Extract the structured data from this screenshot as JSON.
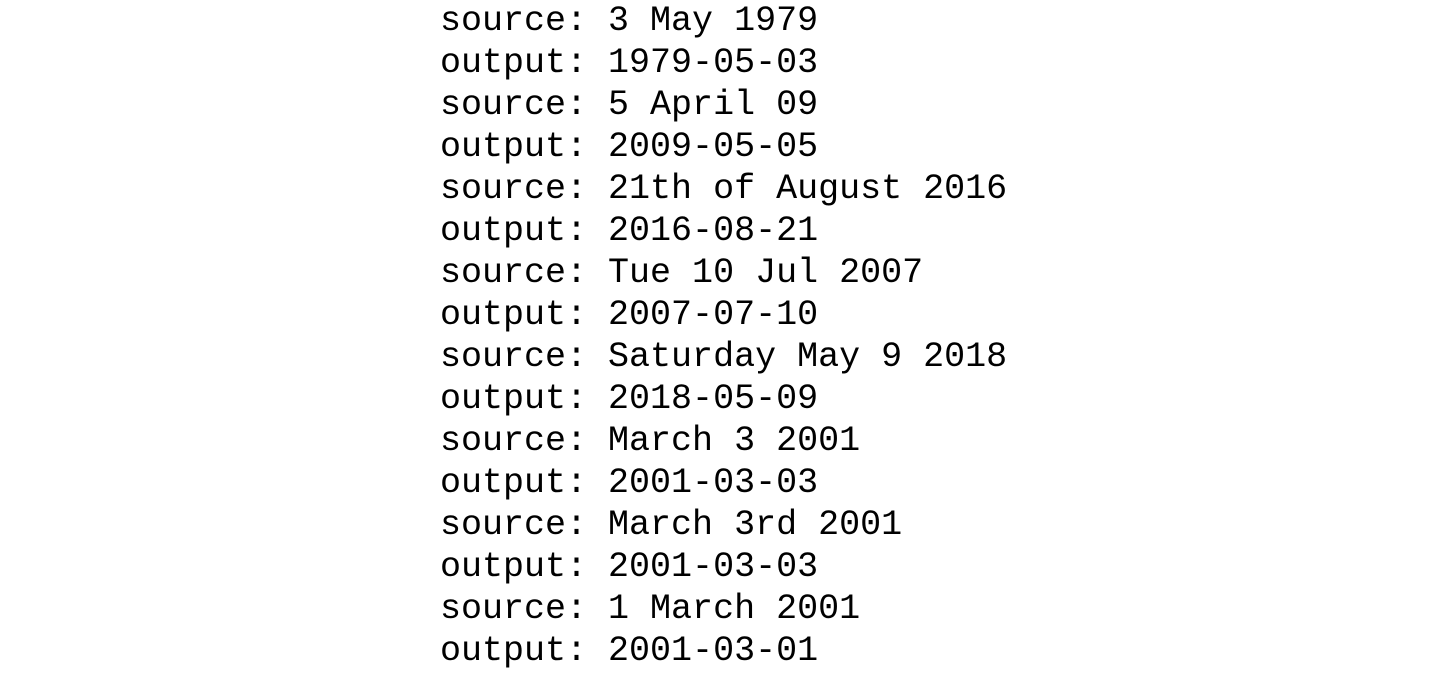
{
  "lines": [
    {
      "label": "source:",
      "value": "3 May 1979"
    },
    {
      "label": "output:",
      "value": "1979-05-03"
    },
    {
      "label": "source:",
      "value": "5 April 09"
    },
    {
      "label": "output:",
      "value": "2009-05-05"
    },
    {
      "label": "source:",
      "value": "21th of August 2016"
    },
    {
      "label": "output:",
      "value": "2016-08-21"
    },
    {
      "label": "source:",
      "value": "Tue 10 Jul 2007"
    },
    {
      "label": "output:",
      "value": "2007-07-10"
    },
    {
      "label": "source:",
      "value": "Saturday May 9 2018"
    },
    {
      "label": "output:",
      "value": "2018-05-09"
    },
    {
      "label": "source:",
      "value": "March 3 2001"
    },
    {
      "label": "output:",
      "value": "2001-03-03"
    },
    {
      "label": "source:",
      "value": "March 3rd 2001"
    },
    {
      "label": "output:",
      "value": "2001-03-03"
    },
    {
      "label": "source:",
      "value": "1 March 2001"
    },
    {
      "label": "output:",
      "value": "2001-03-01"
    }
  ]
}
